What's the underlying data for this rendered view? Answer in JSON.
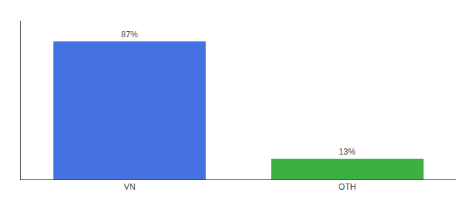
{
  "chart_data": {
    "type": "bar",
    "categories": [
      "VN",
      "OTH"
    ],
    "values": [
      87,
      13
    ],
    "value_labels": [
      "87%",
      "13%"
    ],
    "data_labels": true,
    "colors": [
      "#4472e0",
      "#3cb043"
    ],
    "ylim": [
      0,
      100
    ],
    "grid": false,
    "tick_labels": "x"
  }
}
